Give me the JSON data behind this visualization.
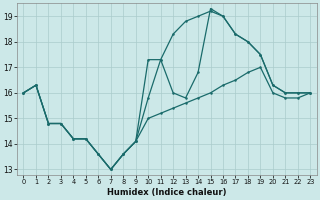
{
  "xlabel": "Humidex (Indice chaleur)",
  "bg_color": "#cce8e8",
  "grid_color": "#aacccc",
  "line_color": "#1a6b6b",
  "xlim": [
    -0.5,
    23.5
  ],
  "ylim": [
    12.8,
    19.5
  ],
  "xticks": [
    0,
    1,
    2,
    3,
    4,
    5,
    6,
    7,
    8,
    9,
    10,
    11,
    12,
    13,
    14,
    15,
    16,
    17,
    18,
    19,
    20,
    21,
    22,
    23
  ],
  "yticks": [
    13,
    14,
    15,
    16,
    17,
    18,
    19
  ],
  "curve1_x": [
    0,
    1,
    2,
    3,
    4,
    5,
    6,
    7,
    8,
    9,
    10,
    11,
    12,
    13,
    14,
    15,
    16,
    17,
    18,
    19,
    20,
    21,
    22,
    23
  ],
  "curve1_y": [
    16.0,
    16.3,
    14.8,
    14.8,
    14.2,
    14.2,
    13.6,
    13.0,
    13.6,
    14.1,
    17.3,
    17.3,
    16.0,
    15.8,
    16.8,
    19.3,
    19.0,
    18.3,
    18.0,
    17.5,
    16.3,
    16.0,
    16.0,
    16.0
  ],
  "curve2_x": [
    0,
    1,
    2,
    3,
    4,
    5,
    6,
    7,
    8,
    9,
    10,
    11,
    12,
    13,
    14,
    15,
    16,
    17,
    18,
    19,
    20,
    21,
    22,
    23
  ],
  "curve2_y": [
    16.0,
    16.3,
    14.8,
    14.8,
    14.2,
    14.2,
    13.6,
    13.0,
    13.6,
    14.1,
    15.8,
    17.3,
    18.3,
    18.8,
    19.0,
    19.2,
    19.0,
    18.3,
    18.0,
    17.5,
    16.3,
    16.0,
    16.0,
    16.0
  ],
  "curve3_x": [
    0,
    1,
    2,
    3,
    4,
    5,
    6,
    7,
    8,
    9,
    10,
    11,
    12,
    13,
    14,
    15,
    16,
    17,
    18,
    19,
    20,
    21,
    22,
    23
  ],
  "curve3_y": [
    16.0,
    16.3,
    14.8,
    14.8,
    14.2,
    14.2,
    13.6,
    13.0,
    13.6,
    14.1,
    15.0,
    15.2,
    15.4,
    15.6,
    15.8,
    16.0,
    16.3,
    16.5,
    16.8,
    17.0,
    16.0,
    15.8,
    15.8,
    16.0
  ]
}
